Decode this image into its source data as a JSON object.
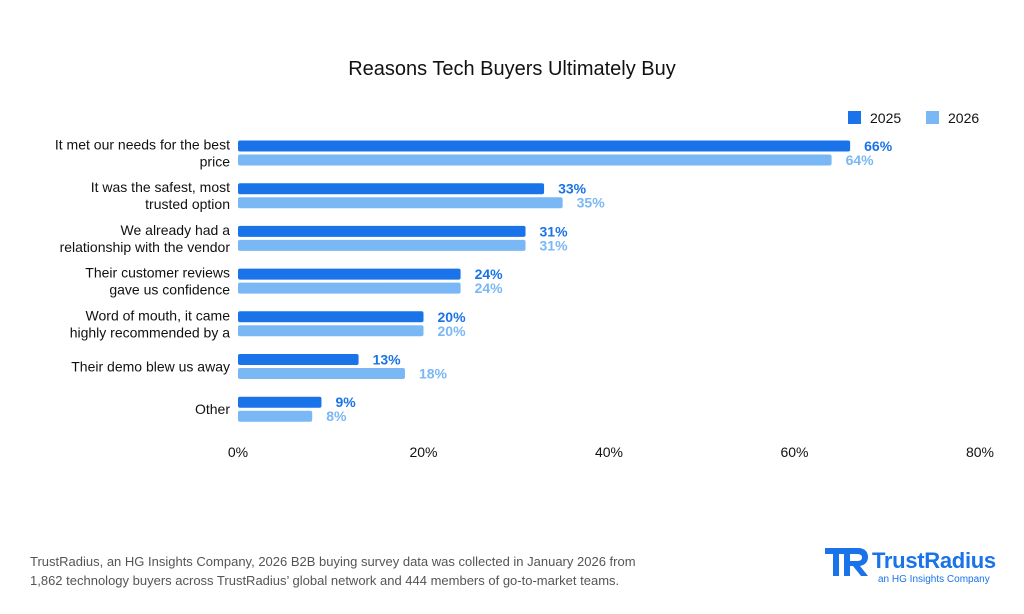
{
  "chart_data": {
    "type": "bar",
    "orientation": "horizontal",
    "title": "Reasons Tech Buyers Ultimately Buy",
    "categories": [
      [
        "It met our needs for the best",
        "price"
      ],
      [
        "It was the safest, most",
        "trusted option"
      ],
      [
        "We already had a",
        "relationship with the vendor"
      ],
      [
        "Their customer reviews",
        "gave us confidence"
      ],
      [
        "Word of mouth, it came",
        "highly recommended by a"
      ],
      [
        "Their demo blew us away"
      ],
      [
        "Other"
      ]
    ],
    "series": [
      {
        "name": "2025",
        "color": "#1a73e8",
        "values": [
          66,
          33,
          31,
          24,
          20,
          13,
          9
        ]
      },
      {
        "name": "2026",
        "color": "#7ab7f5",
        "values": [
          64,
          35,
          31,
          24,
          20,
          18,
          8
        ]
      }
    ],
    "value_suffix": "%",
    "xlim": [
      0,
      80
    ],
    "xticks": [
      0,
      20,
      40,
      60,
      80
    ],
    "xtick_labels": [
      "0%",
      "20%",
      "40%",
      "60%",
      "80%"
    ],
    "grid": false,
    "legend_position": "top-right"
  },
  "footnote": {
    "line1": "TrustRadius, an HG Insights Company, 2026 B2B buying survey data was collected in January 2026 from",
    "line2": "1,862 technology buyers across TrustRadius’ global network and 444 members of go-to-market teams."
  },
  "logo": {
    "name": "TrustRadius",
    "tagline": "an HG Insights Company",
    "color": "#1a73e8"
  }
}
